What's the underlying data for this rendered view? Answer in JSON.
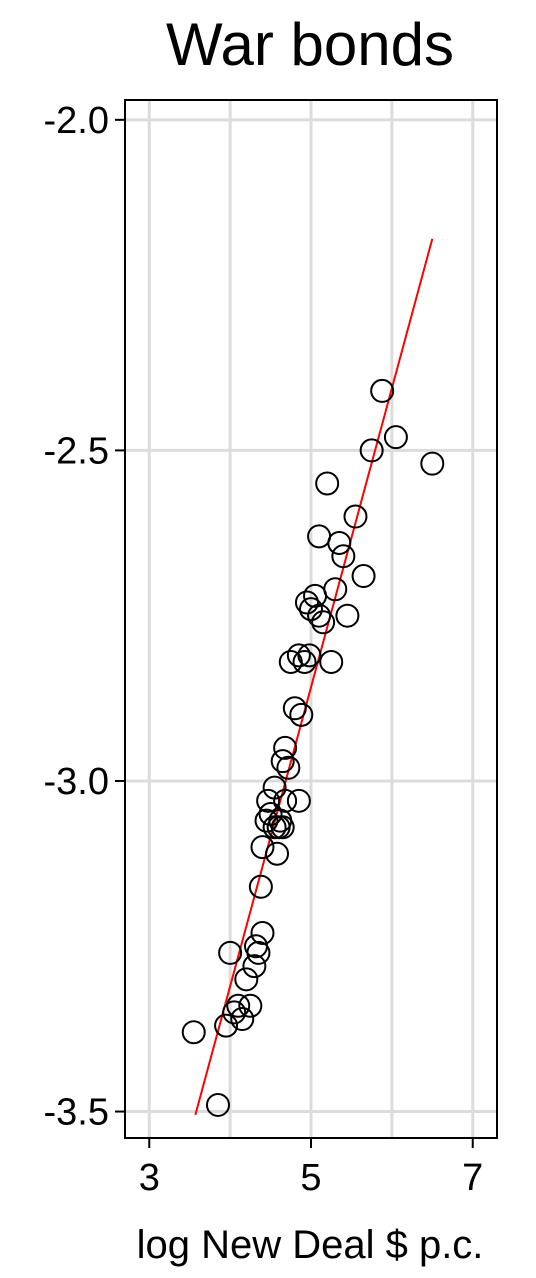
{
  "chart_data": {
    "type": "scatter",
    "title": "War bonds",
    "xlabel": "log New Deal $ p.c.",
    "ylabel": "",
    "xlim": [
      2.7,
      7.3
    ],
    "ylim": [
      -3.54,
      -1.97
    ],
    "x_ticks": [
      3,
      5,
      7
    ],
    "x_tick_labels": [
      "3",
      "5",
      "7"
    ],
    "y_ticks": [
      -2.0,
      -2.5,
      -3.0,
      -3.5
    ],
    "y_tick_labels": [
      "-2.0",
      "-2.5",
      "-3.0",
      "-3.5"
    ],
    "grid": true,
    "legend": "none",
    "colors": {
      "points": "#000000",
      "fit_line": "#ff0000",
      "grid": "#dcdcdc",
      "frame": "#000000"
    },
    "series": [
      {
        "kind": "scatter",
        "marker": "hollow-circle",
        "points": [
          [
            3.55,
            -3.38
          ],
          [
            3.85,
            -3.49
          ],
          [
            3.95,
            -3.37
          ],
          [
            4.0,
            -3.26
          ],
          [
            4.05,
            -3.35
          ],
          [
            4.1,
            -3.34
          ],
          [
            4.15,
            -3.36
          ],
          [
            4.2,
            -3.3
          ],
          [
            4.25,
            -3.34
          ],
          [
            4.3,
            -3.28
          ],
          [
            4.32,
            -3.25
          ],
          [
            4.35,
            -3.26
          ],
          [
            4.4,
            -3.23
          ],
          [
            4.38,
            -3.16
          ],
          [
            4.4,
            -3.1
          ],
          [
            4.45,
            -3.06
          ],
          [
            4.47,
            -3.03
          ],
          [
            4.5,
            -3.05
          ],
          [
            4.55,
            -3.07
          ],
          [
            4.58,
            -3.11
          ],
          [
            4.6,
            -3.07
          ],
          [
            4.62,
            -3.06
          ],
          [
            4.65,
            -3.07
          ],
          [
            4.55,
            -3.01
          ],
          [
            4.68,
            -3.03
          ],
          [
            4.65,
            -2.97
          ],
          [
            4.72,
            -2.98
          ],
          [
            4.68,
            -2.95
          ],
          [
            4.85,
            -3.03
          ],
          [
            4.8,
            -2.89
          ],
          [
            4.88,
            -2.9
          ],
          [
            4.75,
            -2.82
          ],
          [
            4.85,
            -2.81
          ],
          [
            4.92,
            -2.82
          ],
          [
            4.98,
            -2.81
          ],
          [
            5.0,
            -2.74
          ],
          [
            5.05,
            -2.72
          ],
          [
            4.95,
            -2.73
          ],
          [
            5.1,
            -2.75
          ],
          [
            5.15,
            -2.76
          ],
          [
            5.25,
            -2.82
          ],
          [
            5.1,
            -2.63
          ],
          [
            5.2,
            -2.55
          ],
          [
            5.3,
            -2.71
          ],
          [
            5.35,
            -2.64
          ],
          [
            5.4,
            -2.66
          ],
          [
            5.45,
            -2.75
          ],
          [
            5.55,
            -2.6
          ],
          [
            5.65,
            -2.69
          ],
          [
            5.75,
            -2.5
          ],
          [
            5.88,
            -2.41
          ],
          [
            6.05,
            -2.48
          ],
          [
            6.5,
            -2.52
          ]
        ]
      },
      {
        "kind": "fit-line",
        "points": [
          [
            3.57,
            -3.505
          ],
          [
            6.5,
            -2.18
          ]
        ]
      }
    ]
  }
}
